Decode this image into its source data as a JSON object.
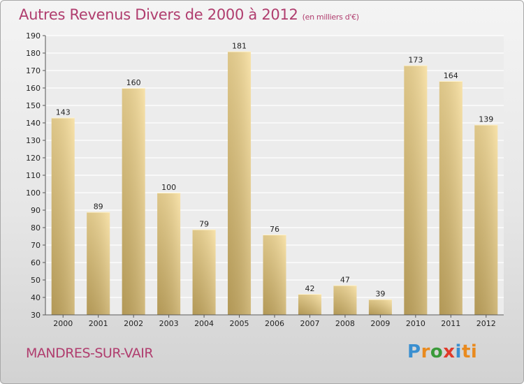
{
  "header": {
    "title": "Autres Revenus Divers de 2000 à 2012",
    "subtitle": "(en milliers d'€)"
  },
  "footer": {
    "city": "MANDRES-SUR-VAIR",
    "logo_letters": [
      "P",
      "r",
      "o",
      "x",
      "i",
      "ti"
    ]
  },
  "colors": {
    "title": "#b03d6e",
    "bar_light": "#f6dc98",
    "bar_dark": "#c9ad66"
  },
  "chart_data": {
    "type": "bar",
    "title": "Autres Revenus Divers de 2000 à 2012",
    "xlabel": "",
    "ylabel": "",
    "categories": [
      "2000",
      "2001",
      "2002",
      "2003",
      "2004",
      "2005",
      "2006",
      "2007",
      "2008",
      "2009",
      "2010",
      "2011",
      "2012"
    ],
    "values": [
      143,
      89,
      160,
      100,
      79,
      181,
      76,
      42,
      47,
      39,
      173,
      164,
      139
    ],
    "ylim": [
      30,
      190
    ],
    "yticks": [
      30,
      40,
      50,
      60,
      70,
      80,
      90,
      100,
      110,
      120,
      130,
      140,
      150,
      160,
      170,
      180,
      190
    ],
    "grid": true,
    "legend": "none"
  }
}
